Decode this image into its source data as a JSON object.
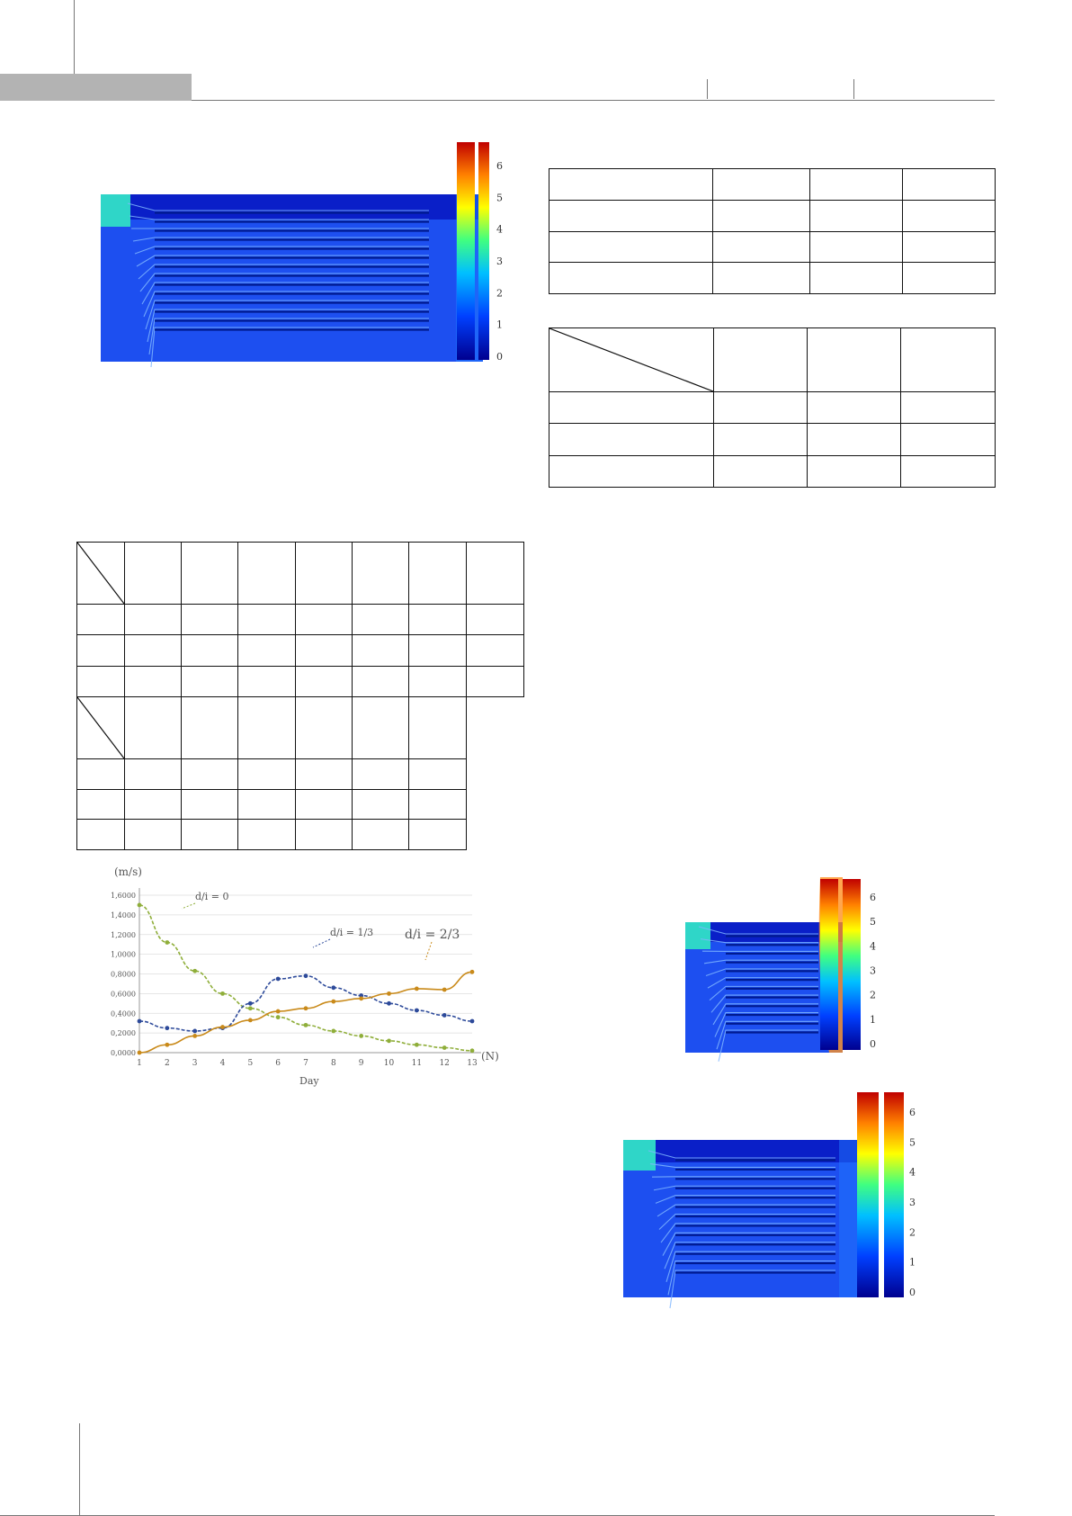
{
  "colorbar": {
    "ticks_small": [
      "6",
      "5",
      "4",
      "3",
      "2",
      "1",
      "0"
    ],
    "ticks_large": [
      "6",
      "5",
      "4",
      "3",
      "2",
      "1",
      "0"
    ]
  },
  "colors": {
    "flow_dark": "#0a1fc8",
    "flow_mid": "#1d4ff0",
    "jet": [
      "#00008f",
      "#0040ff",
      "#00c0ff",
      "#40ff80",
      "#ffff00",
      "#ff8000",
      "#c00000"
    ]
  },
  "tables": {
    "table_a": {
      "rows": 4,
      "cols": 4
    },
    "table_b": {
      "rows": 4,
      "cols": 4,
      "has_diagonal_header": true
    },
    "table_c": {
      "rows": 4,
      "cols": 8,
      "has_diagonal_header": true
    },
    "table_d": {
      "rows": 4,
      "cols": 7,
      "has_diagonal_header": true
    }
  },
  "chart_data": {
    "type": "line",
    "yunit": "(m/s)",
    "xunit": "(N)",
    "xlabel": "Day",
    "ylabel": "",
    "x": [
      1,
      2,
      3,
      4,
      5,
      6,
      7,
      8,
      9,
      10,
      11,
      12,
      13
    ],
    "ylim": [
      0,
      1.6
    ],
    "yticks": [
      "0,0000",
      "0,2000",
      "0,4000",
      "0,6000",
      "0,8000",
      "1,0000",
      "1,2000",
      "1,4000",
      "1,6000"
    ],
    "series": [
      {
        "name": "d/i = 0",
        "color": "#8fae3a",
        "values": [
          1.5,
          1.12,
          0.83,
          0.6,
          0.45,
          0.36,
          0.28,
          0.22,
          0.17,
          0.12,
          0.08,
          0.05,
          0.02
        ]
      },
      {
        "name": "d/i = 1/3",
        "color": "#2d4a9a",
        "values": [
          0.32,
          0.25,
          0.22,
          0.25,
          0.5,
          0.75,
          0.78,
          0.66,
          0.58,
          0.5,
          0.43,
          0.38,
          0.32
        ]
      },
      {
        "name": "d/i = 2/3",
        "color": "#c98a1a",
        "values": [
          0.0,
          0.08,
          0.17,
          0.26,
          0.33,
          0.42,
          0.45,
          0.52,
          0.55,
          0.6,
          0.65,
          0.64,
          0.82
        ]
      }
    ]
  }
}
